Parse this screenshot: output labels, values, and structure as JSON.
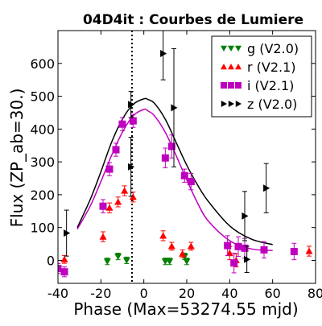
{
  "chart_data": {
    "type": "scatter",
    "title": "04D4it : Courbes de Lumiere",
    "xlabel": "Phase (Max=53274.55 mjd)",
    "ylabel": "Flux (ZP_ab=30.)",
    "xlim": [
      -40,
      80
    ],
    "ylim": [
      -70,
      700
    ],
    "xticks": [
      -40,
      -20,
      0,
      20,
      40,
      60,
      80
    ],
    "yticks": [
      0,
      100,
      200,
      300,
      400,
      500,
      600
    ],
    "xtick_labels": [
      "-40",
      "-20",
      "0",
      "20",
      "40",
      "60",
      "80"
    ],
    "ytick_labels": [
      "0",
      "100",
      "200",
      "300",
      "400",
      "500",
      "600"
    ],
    "max_line_x": -5.5,
    "legend_position": "top-right",
    "series": [
      {
        "name": "g (V2.0)",
        "color": "#008000",
        "marker": "triangle-down",
        "points": [
          {
            "x": -17,
            "y": -3,
            "err": 10
          },
          {
            "x": -12,
            "y": 12,
            "err": 10
          },
          {
            "x": -8,
            "y": 0,
            "err": 10
          },
          {
            "x": 10,
            "y": -3,
            "err": 10
          },
          {
            "x": 12,
            "y": -3,
            "err": 10
          },
          {
            "x": 19,
            "y": 12,
            "err": 10
          },
          {
            "x": 20,
            "y": -3,
            "err": 10
          }
        ]
      },
      {
        "name": "r (V2.1)",
        "color": "#ff0000",
        "marker": "triangle-up",
        "points": [
          {
            "x": -37,
            "y": 3,
            "err": 12
          },
          {
            "x": -19,
            "y": 72,
            "err": 15
          },
          {
            "x": -16,
            "y": 160,
            "err": 15
          },
          {
            "x": -12,
            "y": 178,
            "err": 15
          },
          {
            "x": -9,
            "y": 212,
            "err": 15
          },
          {
            "x": -5,
            "y": 193,
            "err": 15
          },
          {
            "x": 9,
            "y": 75,
            "err": 15
          },
          {
            "x": 13,
            "y": 43,
            "err": 12
          },
          {
            "x": 18,
            "y": 20,
            "err": 12
          },
          {
            "x": 22,
            "y": 43,
            "err": 12
          },
          {
            "x": 40,
            "y": 22,
            "err": 20
          },
          {
            "x": 43,
            "y": 0,
            "err": 20
          },
          {
            "x": 77,
            "y": 28,
            "err": 15
          }
        ]
      },
      {
        "name": "i (V2.1)",
        "color": "#bf00bf",
        "marker": "square",
        "points": [
          {
            "x": -40,
            "y": -25,
            "err": 15
          },
          {
            "x": -37,
            "y": -35,
            "err": 15
          },
          {
            "x": -19,
            "y": 165,
            "err": 20
          },
          {
            "x": -16,
            "y": 278,
            "err": 20
          },
          {
            "x": -13,
            "y": 337,
            "err": 20
          },
          {
            "x": -10,
            "y": 415,
            "err": 20
          },
          {
            "x": -5,
            "y": 425,
            "err": 20
          },
          {
            "x": 10,
            "y": 312,
            "err": 30
          },
          {
            "x": 13,
            "y": 347,
            "err": 35
          },
          {
            "x": 19,
            "y": 258,
            "err": 20
          },
          {
            "x": 22,
            "y": 240,
            "err": 25
          },
          {
            "x": 39,
            "y": 45,
            "err": 30
          },
          {
            "x": 42,
            "y": -8,
            "err": 30
          },
          {
            "x": 44,
            "y": 42,
            "err": 30
          },
          {
            "x": 47,
            "y": 37,
            "err": 30
          },
          {
            "x": 56,
            "y": 32,
            "err": 25
          },
          {
            "x": 70,
            "y": 27,
            "err": 25
          }
        ]
      },
      {
        "name": "z (V2.0)",
        "color": "#000000",
        "marker": "triangle-right",
        "points": [
          {
            "x": -36,
            "y": 83,
            "err": 70
          },
          {
            "x": -6,
            "y": 285,
            "err": 90
          },
          {
            "x": -6,
            "y": 475,
            "err": 40
          },
          {
            "x": 9,
            "y": 630,
            "err": 80
          },
          {
            "x": 14,
            "y": 465,
            "err": 180
          },
          {
            "x": 47,
            "y": 135,
            "err": 75
          },
          {
            "x": 57,
            "y": 220,
            "err": 75
          },
          {
            "x": 48,
            "y": 3,
            "err": 40
          }
        ]
      }
    ],
    "fits": [
      {
        "name": "z fit",
        "color": "#000000",
        "x": [
          -31,
          -25,
          -20,
          -15,
          -10,
          -5,
          0,
          2,
          5,
          10,
          15,
          20,
          25,
          30,
          40,
          50,
          60
        ],
        "y": [
          100,
          185,
          270,
          360,
          430,
          475,
          492,
          490,
          478,
          430,
          360,
          290,
          230,
          180,
          105,
          65,
          48
        ]
      },
      {
        "name": "i fit",
        "color": "#bf00bf",
        "x": [
          -31,
          -25,
          -20,
          -15,
          -10,
          -5,
          0,
          2,
          5,
          10,
          15,
          20,
          25,
          30,
          40,
          50,
          60
        ],
        "y": [
          95,
          165,
          240,
          320,
          390,
          440,
          460,
          455,
          440,
          390,
          320,
          245,
          175,
          120,
          60,
          35,
          30
        ]
      }
    ]
  }
}
